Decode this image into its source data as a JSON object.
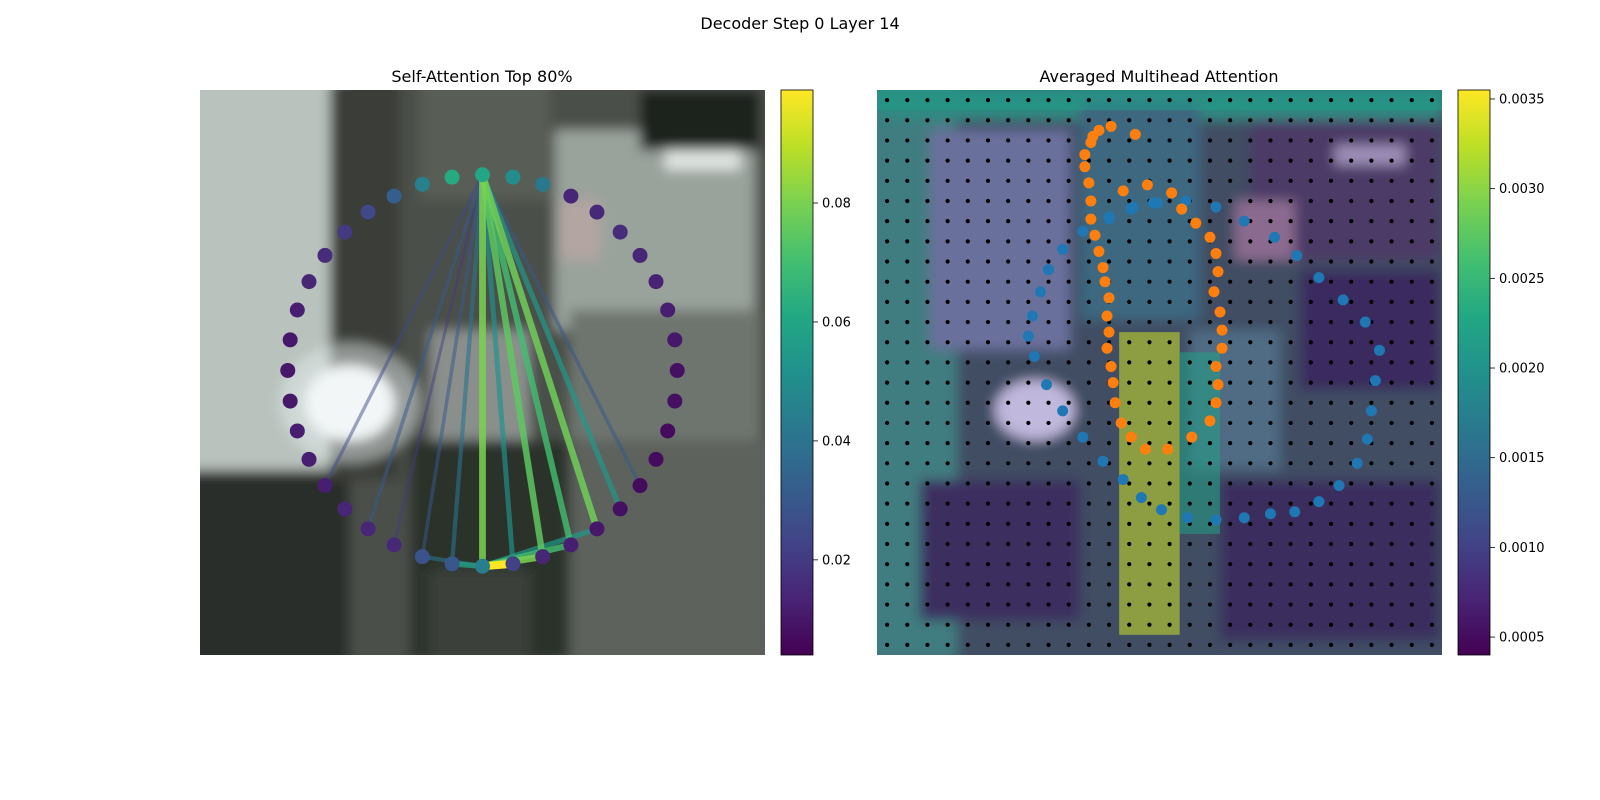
{
  "figure": {
    "suptitle": "Decoder Step 0 Layer 14"
  },
  "chart_data": [
    {
      "type": "scatter",
      "title": "Self-Attention Top 80%",
      "colormap": "viridis",
      "colorbar": {
        "range": [
          0.004,
          0.099
        ],
        "ticks": [
          "0.02",
          "0.04",
          "0.06",
          "0.08"
        ],
        "tick_values": [
          0.02,
          0.04,
          0.06,
          0.08
        ]
      },
      "axes": {
        "x_range": [
          0,
          56
        ],
        "y_range": [
          0,
          56
        ],
        "y_inverted": true,
        "visible": false
      },
      "background": "blurred street camera image",
      "nodes": {
        "count": 40,
        "ellipse": {
          "cx": 28,
          "cy": 27.8,
          "rx": 19.3,
          "ry": 19.4
        },
        "values": [
          0.06,
          0.05,
          0.042,
          0.014,
          0.015,
          0.016,
          0.014,
          0.013,
          0.012,
          0.01,
          0.008,
          0.008,
          0.007,
          0.007,
          0.007,
          0.008,
          0.01,
          0.012,
          0.014,
          0.022,
          0.044,
          0.03,
          0.028,
          0.015,
          0.014,
          0.014,
          0.012,
          0.012,
          0.012,
          0.01,
          0.01,
          0.01,
          0.012,
          0.014,
          0.016,
          0.02,
          0.025,
          0.032,
          0.045,
          0.062
        ]
      },
      "edges": {
        "source": 0,
        "items": [
          {
            "to": 20,
            "value": 0.08
          },
          {
            "to": 19,
            "value": 0.052
          },
          {
            "to": 18,
            "value": 0.075
          },
          {
            "to": 17,
            "value": 0.07
          },
          {
            "to": 16,
            "value": 0.078
          },
          {
            "to": 15,
            "value": 0.055
          },
          {
            "to": 14,
            "value": 0.03
          },
          {
            "to": 21,
            "value": 0.04
          },
          {
            "to": 22,
            "value": 0.03
          },
          {
            "to": 24,
            "value": 0.03
          },
          {
            "to": 26,
            "value": 0.025
          },
          {
            "to": 23,
            "value": 0.02
          }
        ],
        "bottom_chain": [
          {
            "from": 20,
            "to": 19,
            "value": 0.099
          },
          {
            "from": 20,
            "to": 18,
            "value": 0.08
          },
          {
            "from": 20,
            "to": 17,
            "value": 0.07
          },
          {
            "from": 20,
            "to": 16,
            "value": 0.055
          },
          {
            "from": 20,
            "to": 21,
            "value": 0.06
          },
          {
            "from": 20,
            "to": 22,
            "value": 0.04
          }
        ]
      }
    },
    {
      "type": "heatmap",
      "title": "Averaged Multihead Attention",
      "colormap": "viridis",
      "colorbar": {
        "range": [
          0.0004,
          0.00355
        ],
        "ticks": [
          "0.0005",
          "0.0010",
          "0.0015",
          "0.0020",
          "0.0025",
          "0.0030",
          "0.0035"
        ],
        "tick_values": [
          0.0005,
          0.001,
          0.0015,
          0.002,
          0.0025,
          0.003,
          0.0035
        ]
      },
      "axes": {
        "x_range": [
          0,
          28
        ],
        "y_range": [
          0,
          28
        ],
        "y_inverted": true,
        "visible": false
      },
      "grid_dots": {
        "count_x": 28,
        "count_y": 28
      },
      "series": [
        {
          "name": "blue-points",
          "color": "#1f77b4",
          "x": [
            11.5,
            12.6,
            13.7,
            15.3,
            16.8,
            18.2,
            19.7,
            20.8,
            21.9,
            23.1,
            24.2,
            24.9,
            24.7,
            24.5,
            24.3,
            23.8,
            22.9,
            21.9,
            20.7,
            19.5,
            18.2,
            16.8,
            15.4,
            14.1,
            13.1,
            12.2,
            11.2,
            10.2,
            9.2,
            8.4,
            7.8,
            7.5,
            7.7,
            8.1,
            8.5,
            9.2,
            10.2,
            11.5,
            12.7,
            13.9
          ],
          "y": [
            6.4,
            5.9,
            5.6,
            5.5,
            5.8,
            6.5,
            7.3,
            8.2,
            9.3,
            10.4,
            11.5,
            12.9,
            14.4,
            15.9,
            17.3,
            18.5,
            19.6,
            20.4,
            20.9,
            21.0,
            21.2,
            21.3,
            21.2,
            20.8,
            20.2,
            19.3,
            18.4,
            17.2,
            15.9,
            14.6,
            13.2,
            12.2,
            11.2,
            10.0,
            8.9,
            7.9,
            7.0,
            6.3,
            5.8,
            5.6
          ]
        },
        {
          "name": "orange-points",
          "color": "#ff7f0e",
          "x": [
            12.2,
            13.4,
            14.6,
            15.1,
            15.8,
            16.5,
            16.8,
            16.9,
            16.7,
            17.0,
            17.1,
            17.1,
            16.8,
            16.9,
            16.8,
            16.5,
            15.6,
            14.4,
            13.3,
            12.6,
            12.1,
            11.8,
            11.7,
            11.6,
            11.4,
            11.5,
            11.4,
            11.5,
            11.3,
            11.2,
            11.0,
            10.8,
            10.6,
            10.6,
            10.5,
            10.3,
            10.3,
            10.6,
            10.7,
            11.0,
            11.6,
            12.8
          ],
          "y": [
            5.0,
            4.7,
            5.1,
            5.9,
            6.6,
            7.3,
            8.1,
            9.0,
            10.0,
            11.0,
            11.9,
            12.8,
            13.7,
            14.6,
            15.5,
            16.4,
            17.2,
            17.8,
            17.8,
            17.2,
            16.5,
            15.5,
            14.5,
            13.7,
            12.8,
            12.0,
            11.2,
            10.3,
            9.5,
            8.8,
            8.0,
            7.2,
            6.4,
            5.5,
            4.6,
            3.8,
            3.2,
            2.6,
            2.3,
            2.0,
            1.8,
            2.2
          ]
        }
      ],
      "hotspot_regions": [
        {
          "x0": 12,
          "x1": 15,
          "y0": 12,
          "y1": 27,
          "level": 0.0033
        },
        {
          "x0": 15,
          "x1": 17,
          "y0": 13,
          "y1": 22,
          "level": 0.0022
        },
        {
          "x0": 0,
          "x1": 28,
          "y0": 0,
          "y1": 1,
          "level": 0.0021
        }
      ]
    }
  ]
}
